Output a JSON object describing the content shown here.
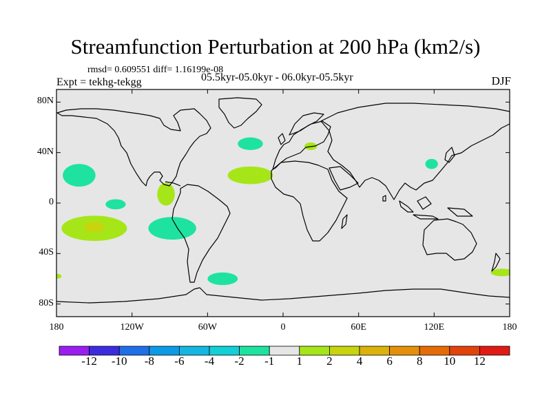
{
  "title": "Streamfunction Perturbation at 200 hPa (km2/s)",
  "stats_line": "rmsd= 0.609551  diff= 1.16199e-08",
  "experiment_line": "Expt = tekhg-tekgg",
  "period_line": "05.5kyr-05.0kyr - 06.0kyr-05.5kyr",
  "season": "DJF",
  "colors": {
    "land_background": "#e6e6e6",
    "coastline": "#000000"
  },
  "chart_data": {
    "type": "contour_map",
    "projection": "cylindrical-equidistant",
    "variable": "Streamfunction Perturbation",
    "level": "200 hPa",
    "units": "km2/s",
    "lon_range": [
      -180,
      180
    ],
    "lat_range": [
      -90,
      90
    ],
    "x_ticks": [
      {
        "value": -180,
        "label": "180"
      },
      {
        "value": -120,
        "label": "120W"
      },
      {
        "value": -60,
        "label": "60W"
      },
      {
        "value": 0,
        "label": "0"
      },
      {
        "value": 60,
        "label": "60E"
      },
      {
        "value": 120,
        "label": "120E"
      },
      {
        "value": 180,
        "label": "180"
      }
    ],
    "y_ticks": [
      {
        "value": 80,
        "label": "80N"
      },
      {
        "value": 40,
        "label": "40N"
      },
      {
        "value": 0,
        "label": "0"
      },
      {
        "value": -40,
        "label": "40S"
      },
      {
        "value": -80,
        "label": "80S"
      }
    ],
    "colorbar": {
      "labels": [
        "-12",
        "-10",
        "-8",
        "-6",
        "-4",
        "-2",
        "-1",
        "1",
        "2",
        "4",
        "6",
        "8",
        "10",
        "12"
      ],
      "colors": [
        "#9a1ef0",
        "#3c2ce0",
        "#1f6fe8",
        "#0b9be6",
        "#14b6e2",
        "#12cfd8",
        "#1ee3a0",
        "#e6e6e6",
        "#a6e619",
        "#c8d40e",
        "#dcb20a",
        "#e4900a",
        "#e56b08",
        "#e2430b",
        "#e01a14"
      ]
    },
    "anomalies": [
      {
        "region": "North Pacific subtropics",
        "lon": -162,
        "lat": 22,
        "lon_extent": 13,
        "lat_extent": 9,
        "category": "-2 to -1"
      },
      {
        "region": "Central Pacific near equator",
        "lon": -133,
        "lat": -1,
        "lon_extent": 8,
        "lat_extent": 4,
        "category": "-2 to -1"
      },
      {
        "region": "South Pacific subtropics",
        "lon": -150,
        "lat": -20,
        "lon_extent": 26,
        "lat_extent": 10,
        "category": "1 to 2"
      },
      {
        "region": "South Pacific core",
        "lon": -150,
        "lat": -19,
        "lon_extent": 8,
        "lat_extent": 4,
        "category": "2 to 4"
      },
      {
        "region": "Mexico / Gulf",
        "lon": -93,
        "lat": 7,
        "lon_extent": 7,
        "lat_extent": 9,
        "category": "1 to 2"
      },
      {
        "region": "Southeast Pacific",
        "lon": -88,
        "lat": -20,
        "lon_extent": 19,
        "lat_extent": 9,
        "category": "-2 to -1"
      },
      {
        "region": "North Atlantic",
        "lon": -26,
        "lat": 22,
        "lon_extent": 18,
        "lat_extent": 7,
        "category": "1 to 2"
      },
      {
        "region": "North Atlantic midlatitudes",
        "lon": -26,
        "lat": 47,
        "lon_extent": 10,
        "lat_extent": 5,
        "category": "-2 to -1"
      },
      {
        "region": "Europe / Balkans",
        "lon": 22,
        "lat": 45,
        "lon_extent": 5,
        "lat_extent": 3,
        "category": "1 to 2"
      },
      {
        "region": "East China",
        "lon": 118,
        "lat": 31,
        "lon_extent": 5,
        "lat_extent": 4,
        "category": "-2 to -1"
      },
      {
        "region": "Southern Ocean near Drake Passage",
        "lon": -48,
        "lat": -60,
        "lon_extent": 12,
        "lat_extent": 5,
        "category": "-2 to -1"
      },
      {
        "region": "Southern Ocean west edge",
        "lon": -180,
        "lat": -58,
        "lon_extent": 4,
        "lat_extent": 2,
        "category": "1 to 2"
      },
      {
        "region": "Southern Ocean east edge",
        "lon": 174,
        "lat": -55,
        "lon_extent": 9,
        "lat_extent": 3,
        "category": "1 to 2"
      }
    ]
  }
}
